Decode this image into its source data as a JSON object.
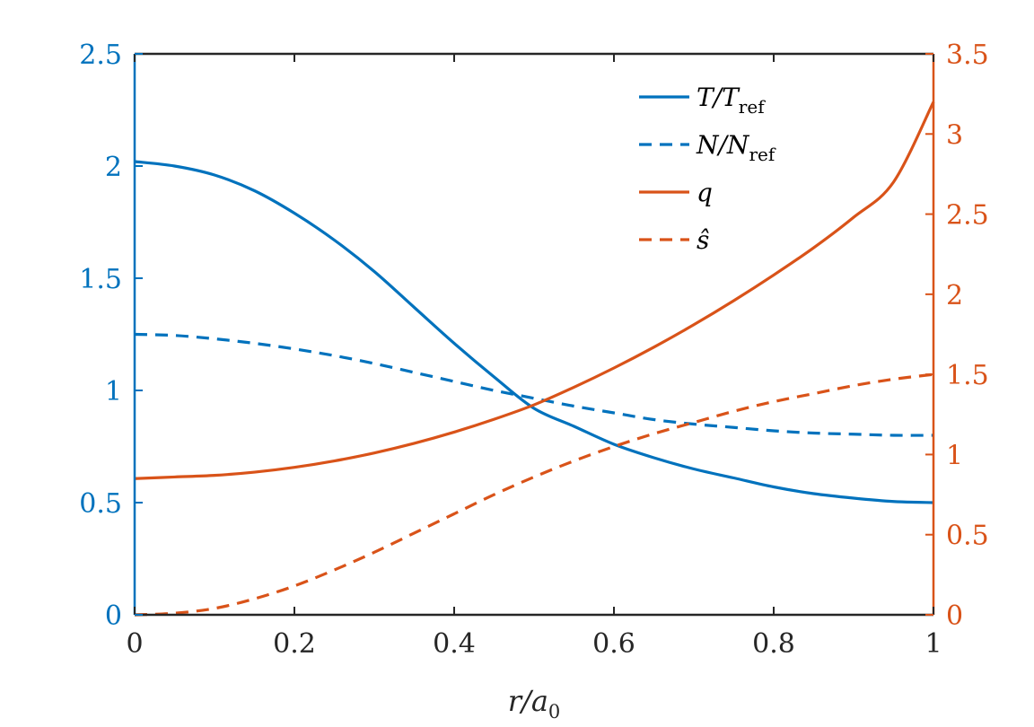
{
  "chart_data": {
    "type": "line",
    "title": "",
    "xlabel": "r/a_0",
    "xlabel_main": "r/a",
    "xlabel_sub": "0",
    "xlim": [
      0,
      1
    ],
    "xticks": [
      0,
      0.2,
      0.4,
      0.6,
      0.8,
      1
    ],
    "xtick_labels": [
      "0",
      "0.2",
      "0.4",
      "0.6",
      "0.8",
      "1"
    ],
    "ylim_left": [
      0,
      2.5
    ],
    "yticks_left": [
      0,
      0.5,
      1,
      1.5,
      2,
      2.5
    ],
    "ytick_labels_left": [
      "0",
      "0.5",
      "1",
      "1.5",
      "2",
      "2.5"
    ],
    "ylim_right": [
      0,
      3.5
    ],
    "yticks_right": [
      0,
      0.5,
      1,
      1.5,
      2,
      2.5,
      3,
      3.5
    ],
    "ytick_labels_right": [
      "0",
      "0.5",
      "1",
      "1.5",
      "2",
      "2.5",
      "3",
      "3.5"
    ],
    "grid": false,
    "legend_position": "top-right",
    "colors": {
      "blue": "#0072BD",
      "orange": "#D95319",
      "axis": "#262626"
    },
    "x": [
      0,
      0.05,
      0.1,
      0.15,
      0.2,
      0.25,
      0.3,
      0.35,
      0.4,
      0.45,
      0.5,
      0.55,
      0.6,
      0.65,
      0.7,
      0.75,
      0.8,
      0.85,
      0.9,
      0.95,
      1
    ],
    "series": [
      {
        "name": "T/T_ref",
        "legend_main": "T/T",
        "legend_sub": "ref",
        "axis": "left",
        "color": "#0072BD",
        "style": "solid",
        "values": [
          2.02,
          2.0,
          1.96,
          1.89,
          1.79,
          1.67,
          1.53,
          1.37,
          1.21,
          1.06,
          0.92,
          0.84,
          0.76,
          0.7,
          0.65,
          0.61,
          0.57,
          0.54,
          0.52,
          0.505,
          0.5
        ]
      },
      {
        "name": "N/N_ref",
        "legend_main": "N/N",
        "legend_sub": "ref",
        "axis": "left",
        "color": "#0072BD",
        "style": "dashed",
        "values": [
          1.25,
          1.245,
          1.23,
          1.21,
          1.185,
          1.155,
          1.12,
          1.08,
          1.04,
          1.0,
          0.965,
          0.93,
          0.9,
          0.87,
          0.85,
          0.835,
          0.82,
          0.81,
          0.805,
          0.8,
          0.8
        ]
      },
      {
        "name": "q",
        "legend_main": "q",
        "legend_sub": "",
        "axis": "right",
        "color": "#D95319",
        "style": "solid",
        "values": [
          0.85,
          0.86,
          0.87,
          0.89,
          0.92,
          0.96,
          1.01,
          1.07,
          1.14,
          1.22,
          1.31,
          1.42,
          1.54,
          1.67,
          1.81,
          1.96,
          2.12,
          2.29,
          2.48,
          2.7,
          3.2
        ]
      },
      {
        "name": "ŝ",
        "legend_main": "ŝ",
        "legend_sub": "",
        "axis": "right",
        "color": "#D95319",
        "style": "dashed",
        "values": [
          0.0,
          0.01,
          0.04,
          0.1,
          0.18,
          0.28,
          0.39,
          0.51,
          0.63,
          0.75,
          0.86,
          0.96,
          1.05,
          1.13,
          1.2,
          1.27,
          1.33,
          1.38,
          1.43,
          1.47,
          1.5
        ]
      }
    ]
  }
}
